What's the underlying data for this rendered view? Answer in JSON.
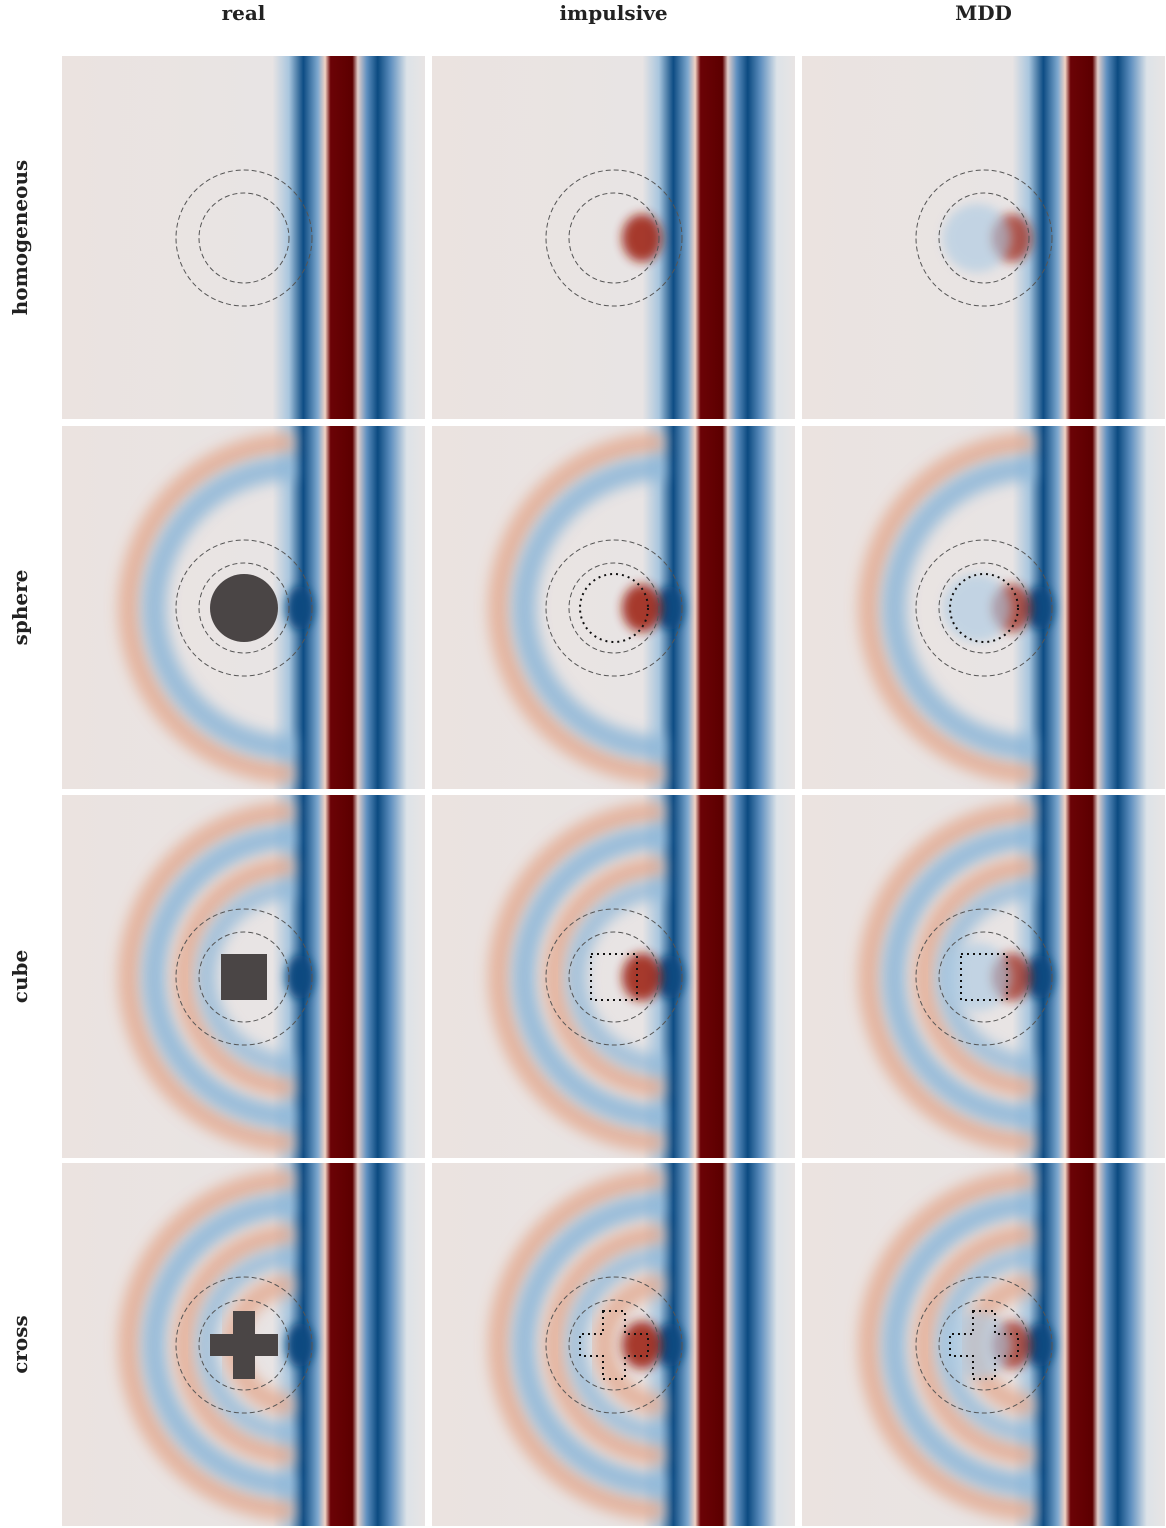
{
  "columns": [
    "real",
    "impulsive",
    "MDD"
  ],
  "rows": [
    "homogeneous",
    "sphere",
    "cube",
    "cross"
  ]
}
